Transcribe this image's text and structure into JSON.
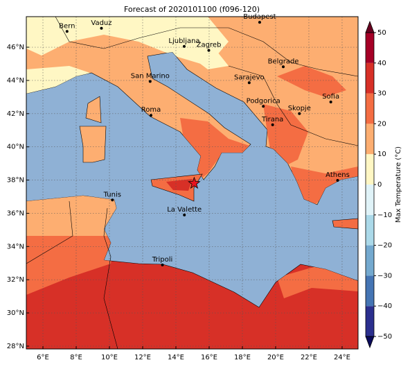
{
  "map": {
    "title": "Forecast of 2020101100 (f096-120)",
    "xlim": [
      5,
      24.96
    ],
    "ylim": [
      27.83,
      47.84
    ],
    "xticks": [
      {
        "value": 6,
        "label": "6°E"
      },
      {
        "value": 8,
        "label": "8°E"
      },
      {
        "value": 10,
        "label": "10°E"
      },
      {
        "value": 12,
        "label": "12°E"
      },
      {
        "value": 14,
        "label": "14°E"
      },
      {
        "value": 16,
        "label": "16°E"
      },
      {
        "value": 18,
        "label": "18°E"
      },
      {
        "value": 20,
        "label": "20°E"
      },
      {
        "value": 22,
        "label": "22°E"
      },
      {
        "value": 24,
        "label": "24°E"
      }
    ],
    "yticks": [
      {
        "value": 28,
        "label": "28°N"
      },
      {
        "value": 30,
        "label": "30°N"
      },
      {
        "value": 32,
        "label": "32°N"
      },
      {
        "value": 34,
        "label": "34°N"
      },
      {
        "value": 36,
        "label": "36°N"
      },
      {
        "value": 38,
        "label": "38°N"
      },
      {
        "value": 40,
        "label": "40°N"
      },
      {
        "value": 42,
        "label": "42°N"
      },
      {
        "value": 44,
        "label": "44°N"
      },
      {
        "value": 46,
        "label": "46°N"
      }
    ],
    "grid": true,
    "cities": [
      {
        "name": "Bern",
        "lon": 7.45,
        "lat": 46.95
      },
      {
        "name": "Vaduz",
        "lon": 9.52,
        "lat": 47.14
      },
      {
        "name": "Budapest",
        "lon": 19.04,
        "lat": 47.5
      },
      {
        "name": "Ljubljana",
        "lon": 14.5,
        "lat": 46.05
      },
      {
        "name": "Zagreb",
        "lon": 15.98,
        "lat": 45.81
      },
      {
        "name": "Belgrade",
        "lon": 20.46,
        "lat": 44.82
      },
      {
        "name": "San Marino",
        "lon": 12.45,
        "lat": 43.94
      },
      {
        "name": "Sarajevo",
        "lon": 18.41,
        "lat": 43.86
      },
      {
        "name": "Roma",
        "lon": 12.5,
        "lat": 41.9
      },
      {
        "name": "Podgorica",
        "lon": 19.26,
        "lat": 42.44
      },
      {
        "name": "Skopje",
        "lon": 21.43,
        "lat": 42.0
      },
      {
        "name": "Sofia",
        "lon": 23.32,
        "lat": 42.7
      },
      {
        "name": "Tirana",
        "lon": 19.82,
        "lat": 41.33
      },
      {
        "name": "Athens",
        "lon": 23.73,
        "lat": 37.98
      },
      {
        "name": "Tunis",
        "lon": 10.18,
        "lat": 36.8
      },
      {
        "name": "La Valette",
        "lon": 14.51,
        "lat": 35.9
      },
      {
        "name": "Tripoli",
        "lon": 13.19,
        "lat": 32.89
      }
    ],
    "star": {
      "lon": 15.1,
      "lat": 37.8,
      "color": "#e8141e"
    },
    "colorbar": {
      "label": "Max Temperature (°C)",
      "ticks": [
        {
          "value": -50,
          "label": "−50"
        },
        {
          "value": -40,
          "label": "−40"
        },
        {
          "value": -30,
          "label": "−30"
        },
        {
          "value": -20,
          "label": "−20"
        },
        {
          "value": -10,
          "label": "−10"
        },
        0,
        10,
        20,
        30,
        40,
        50
      ],
      "colors": [
        "#2b2f8e",
        "#4575b4",
        "#74a9cf",
        "#abd9e9",
        "#e0f3f8",
        "#fff7c4",
        "#fdae71",
        "#f46d43",
        "#d73027",
        "#a50026"
      ],
      "under_color": "#0a0a5a",
      "over_color": "#67001f"
    }
  }
}
